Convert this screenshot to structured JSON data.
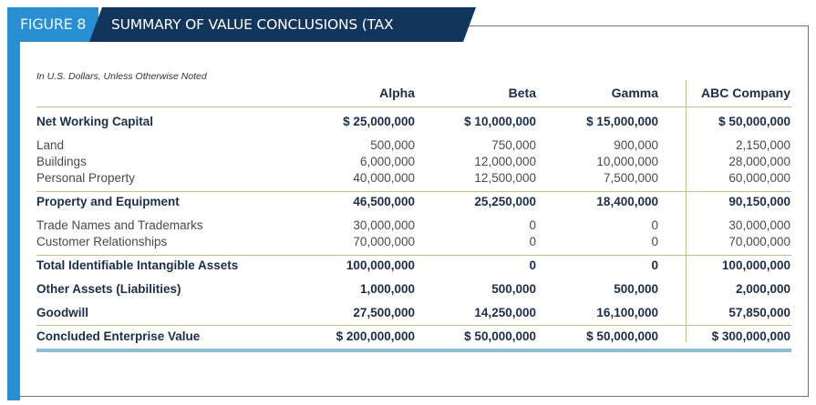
{
  "figure_label": "FIGURE 8",
  "title": "SUMMARY OF VALUE CONCLUSIONS (TAX REPORTING)",
  "note": "In U.S. Dollars, Unless Otherwise Noted",
  "columns": [
    "Alpha",
    "Beta",
    "Gamma",
    "ABC Company"
  ],
  "rows": [
    {
      "label": "Net Working Capital",
      "bold": true,
      "values": [
        "$ 25,000,000",
        "$ 10,000,000",
        "$ 15,000,000",
        "$ 50,000,000"
      ]
    },
    {
      "label": "Land",
      "bold": false,
      "values": [
        "500,000",
        "750,000",
        "900,000",
        "2,150,000"
      ]
    },
    {
      "label": "Buildings",
      "bold": false,
      "values": [
        "6,000,000",
        "12,000,000",
        "10,000,000",
        "28,000,000"
      ]
    },
    {
      "label": "Personal Property",
      "bold": false,
      "values": [
        "40,000,000",
        "12,500,000",
        "7,500,000",
        "60,000,000"
      ]
    },
    {
      "label": "Property and Equipment",
      "bold": true,
      "values": [
        "46,500,000",
        "25,250,000",
        "18,400,000",
        "90,150,000"
      ]
    },
    {
      "label": "Trade Names and Trademarks",
      "bold": false,
      "values": [
        "30,000,000",
        "0",
        "0",
        "30,000,000"
      ]
    },
    {
      "label": "Customer Relationships",
      "bold": false,
      "values": [
        "70,000,000",
        "0",
        "0",
        "70,000,000"
      ]
    },
    {
      "label": "Total Identifiable Intangible Assets",
      "bold": true,
      "values": [
        "100,000,000",
        "0",
        "0",
        "100,000,000"
      ]
    },
    {
      "label": "Other Assets (Liabilities)",
      "bold": true,
      "values": [
        "1,000,000",
        "500,000",
        "500,000",
        "2,000,000"
      ]
    },
    {
      "label": "Goodwill",
      "bold": true,
      "values": [
        "27,500,000",
        "14,250,000",
        "16,100,000",
        "57,850,000"
      ]
    },
    {
      "label": "Concluded Enterprise Value",
      "bold": true,
      "values": [
        "$ 200,000,000",
        "$ 50,000,000",
        "$ 50,000,000",
        "$ 300,000,000"
      ]
    }
  ]
}
